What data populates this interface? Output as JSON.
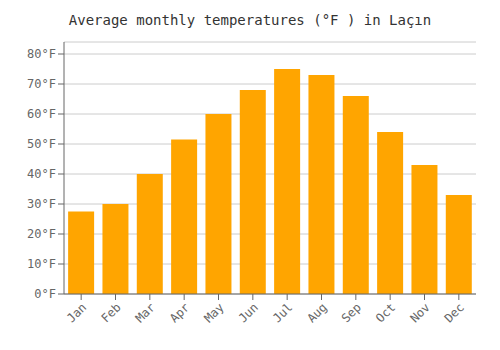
{
  "chart_data": {
    "type": "bar",
    "title": "Average monthly temperatures (°F ) in Laçın",
    "categories": [
      "Jan",
      "Feb",
      "Mar",
      "Apr",
      "May",
      "Jun",
      "Jul",
      "Aug",
      "Sep",
      "Oct",
      "Nov",
      "Dec"
    ],
    "values": [
      27.5,
      30.0,
      40.0,
      51.5,
      60.0,
      68.0,
      75.0,
      73.0,
      66.0,
      54.0,
      43.0,
      33.0
    ],
    "color": "#FFA500",
    "ylim": [
      0,
      84
    ],
    "yticks": [
      {
        "value": 0,
        "label": "0°F"
      },
      {
        "value": 10,
        "label": "10°F"
      },
      {
        "value": 20,
        "label": "20°F"
      },
      {
        "value": 30,
        "label": "30°F"
      },
      {
        "value": 40,
        "label": "40°F"
      },
      {
        "value": 50,
        "label": "50°F"
      },
      {
        "value": 60,
        "label": "60°F"
      },
      {
        "value": 70,
        "label": "70°F"
      },
      {
        "value": 80,
        "label": "80°F"
      }
    ],
    "grid": true
  }
}
